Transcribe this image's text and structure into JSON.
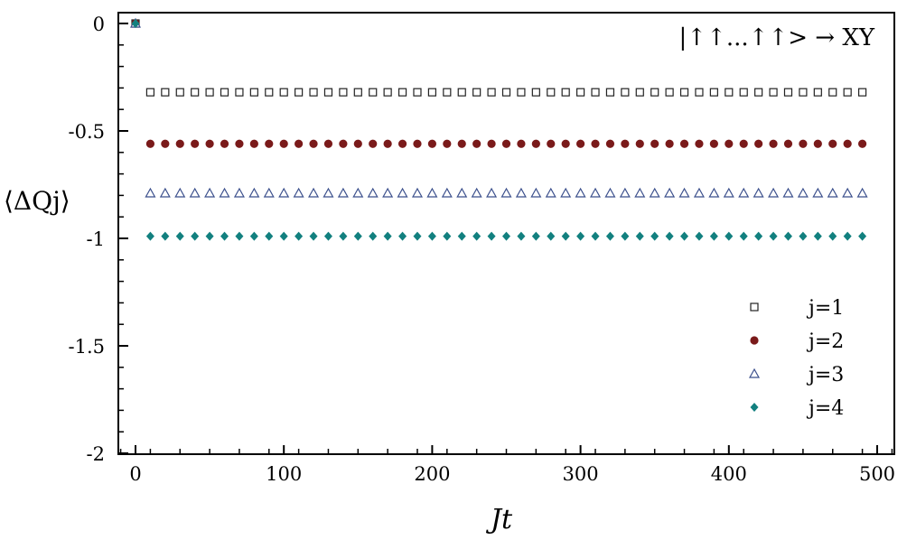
{
  "chart_data": {
    "type": "scatter",
    "title": "",
    "annotation": "|↑↑...↑↑> → XY",
    "xlabel": "Jt",
    "ylabel": "⟨ΔQj⟩",
    "xlim": [
      -12,
      512
    ],
    "ylim": [
      -2,
      0.05
    ],
    "xticks": [
      0,
      100,
      200,
      300,
      400,
      500
    ],
    "xtick_labels": [
      "0",
      "100",
      "200",
      "300",
      "400",
      "500"
    ],
    "yticks": [
      0,
      -0.5,
      -1,
      -1.5,
      -2
    ],
    "ytick_labels": [
      "0",
      "-0.5",
      "-1",
      "-1.5",
      "-2"
    ],
    "grid": false,
    "legend_placement": "bottom-right",
    "x": [
      0,
      10,
      20,
      30,
      40,
      50,
      60,
      70,
      80,
      90,
      100,
      110,
      120,
      130,
      140,
      150,
      160,
      170,
      180,
      190,
      200,
      210,
      220,
      230,
      240,
      250,
      260,
      270,
      280,
      290,
      300,
      310,
      320,
      330,
      340,
      350,
      360,
      370,
      380,
      390,
      400,
      410,
      420,
      430,
      440,
      450,
      460,
      470,
      480,
      490
    ],
    "series": [
      {
        "name": "j=1",
        "marker": "open-square",
        "color": "#222222",
        "initial": 0,
        "plateau": -0.32
      },
      {
        "name": "j=2",
        "marker": "filled-circle",
        "color": "#7a1a1a",
        "initial": 0,
        "plateau": -0.56
      },
      {
        "name": "j=3",
        "marker": "open-triangle",
        "color": "#3b4f8c",
        "initial": 0,
        "plateau": -0.79
      },
      {
        "name": "j=4",
        "marker": "filled-diamond",
        "color": "#12807f",
        "initial": 0,
        "plateau": -0.99
      }
    ]
  }
}
